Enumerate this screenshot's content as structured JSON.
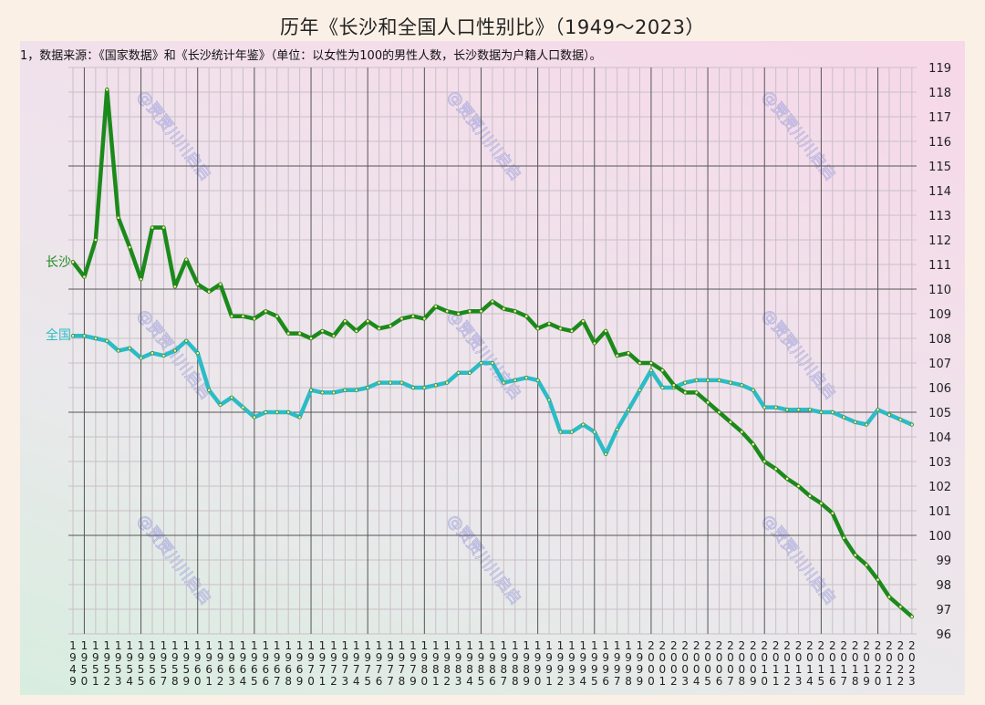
{
  "title": "历年《长沙和全国人口性别比》（1949～2023）",
  "note": "1，数据来源：《国家数据》和《长沙统计年鉴》（单位：以女性为100的男性人数，长沙数据为户籍人口数据）。",
  "watermark": "@贾贾川川启启",
  "colors": {
    "changsha": "#1b8a1b",
    "national": "#2cbcc6",
    "grid_major": "#555555",
    "grid_minor": "#c9bfc8"
  },
  "chart_data": {
    "type": "line",
    "title": "历年《长沙和全国人口性别比》（1949～2023）",
    "subtitle": "1，数据来源：《国家数据》和《长沙统计年鉴》（单位：以女性为100的男性人数，长沙数据为户籍人口数据）。",
    "xlabel": "",
    "ylabel": "",
    "ylim": [
      96,
      119
    ],
    "yticks": [
      96,
      97,
      98,
      99,
      100,
      101,
      102,
      103,
      104,
      105,
      106,
      107,
      108,
      109,
      110,
      111,
      112,
      113,
      114,
      115,
      116,
      117,
      118,
      119
    ],
    "y_axis_position": "right",
    "grid": true,
    "legend": "inline labels at left",
    "x": [
      1949,
      1950,
      1951,
      1952,
      1953,
      1954,
      1955,
      1956,
      1957,
      1958,
      1959,
      1960,
      1961,
      1962,
      1963,
      1964,
      1965,
      1966,
      1967,
      1968,
      1969,
      1970,
      1971,
      1972,
      1973,
      1974,
      1975,
      1976,
      1977,
      1978,
      1979,
      1980,
      1981,
      1982,
      1983,
      1984,
      1985,
      1986,
      1987,
      1988,
      1989,
      1990,
      1991,
      1992,
      1993,
      1994,
      1995,
      1996,
      1997,
      1998,
      1999,
      2000,
      2001,
      2002,
      2003,
      2004,
      2005,
      2006,
      2007,
      2008,
      2009,
      2010,
      2011,
      2012,
      2013,
      2014,
      2015,
      2016,
      2017,
      2018,
      2019,
      2020,
      2021,
      2022,
      2023
    ],
    "series": [
      {
        "name": "长沙",
        "values": [
          111.1,
          110.5,
          112.0,
          118.1,
          112.9,
          111.7,
          110.4,
          112.5,
          112.5,
          110.1,
          111.2,
          110.2,
          109.9,
          110.2,
          108.9,
          108.9,
          108.8,
          109.1,
          108.9,
          108.2,
          108.2,
          108.0,
          108.3,
          108.1,
          108.7,
          108.3,
          108.7,
          108.4,
          108.5,
          108.8,
          108.9,
          108.8,
          109.3,
          109.1,
          109.0,
          109.1,
          109.1,
          109.5,
          109.2,
          109.1,
          108.9,
          108.4,
          108.6,
          108.4,
          108.3,
          108.7,
          107.8,
          108.3,
          107.3,
          107.4,
          107.0,
          107.0,
          106.7,
          106.1,
          105.8,
          105.8,
          105.4,
          105.0,
          104.6,
          104.2,
          103.7,
          103.0,
          102.7,
          102.3,
          102.0,
          101.6,
          101.3,
          100.9,
          99.9,
          99.2,
          98.8,
          98.2,
          97.5,
          97.1,
          96.7
        ]
      },
      {
        "name": "全国",
        "values": [
          108.1,
          108.1,
          108.0,
          107.9,
          107.5,
          107.6,
          107.2,
          107.4,
          107.3,
          107.5,
          107.9,
          107.4,
          105.9,
          105.3,
          105.6,
          105.2,
          104.8,
          105.0,
          105.0,
          105.0,
          104.8,
          105.9,
          105.8,
          105.8,
          105.9,
          105.9,
          106.0,
          106.2,
          106.2,
          106.2,
          106.0,
          106.0,
          106.1,
          106.2,
          106.6,
          106.6,
          107.0,
          107.0,
          106.2,
          106.3,
          106.4,
          106.3,
          105.5,
          104.2,
          104.2,
          104.5,
          104.2,
          103.3,
          104.3,
          105.1,
          105.9,
          106.7,
          106.0,
          106.0,
          106.2,
          106.3,
          106.3,
          106.3,
          106.2,
          106.1,
          105.9,
          105.2,
          105.2,
          105.1,
          105.1,
          105.1,
          105.0,
          105.0,
          104.8,
          104.6,
          104.5,
          105.1,
          104.9,
          104.7,
          104.5
        ]
      }
    ]
  }
}
